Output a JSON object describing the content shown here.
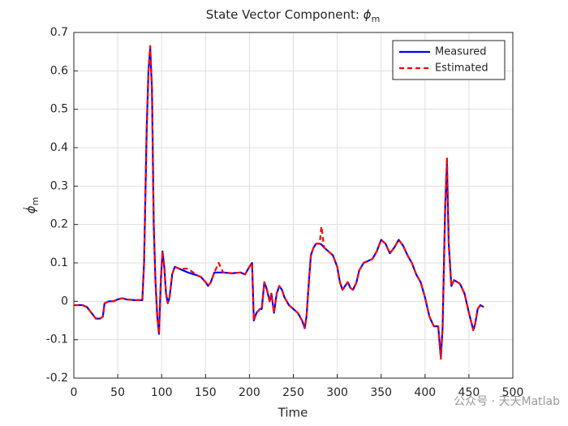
{
  "chart_data": {
    "type": "line",
    "title": {
      "text": "State Vector Component: ",
      "symbol": "ϕ",
      "subscript": "m"
    },
    "x_label": "Time",
    "y_label": {
      "symbol": "ϕ̇",
      "subscript": "m"
    },
    "annotation": "公众号 · 天天Matlab",
    "xlim": [
      0,
      500
    ],
    "xticks": [
      0,
      50,
      100,
      150,
      200,
      250,
      300,
      350,
      400,
      450,
      500
    ],
    "ylim": [
      -0.2,
      0.7
    ],
    "yticks": [
      -0.2,
      -0.1,
      0,
      0.1,
      0.2,
      0.3,
      0.4,
      0.5,
      0.6,
      0.7
    ],
    "grid": true,
    "legend": "upper right",
    "x": [
      0,
      10,
      15,
      20,
      25,
      30,
      33,
      35,
      40,
      45,
      50,
      55,
      60,
      70,
      78,
      80,
      83,
      85,
      87,
      89,
      91,
      93,
      95,
      97,
      99,
      101,
      103,
      105,
      107,
      109,
      112,
      115,
      120,
      130,
      140,
      145,
      150,
      153,
      156,
      160,
      165,
      170,
      180,
      190,
      195,
      200,
      203,
      205,
      208,
      212,
      214,
      217,
      220,
      223,
      225,
      228,
      231,
      234,
      237,
      240,
      245,
      250,
      255,
      260,
      263,
      265,
      268,
      270,
      273,
      276,
      280,
      282,
      285,
      290,
      295,
      300,
      303,
      306,
      309,
      312,
      315,
      318,
      322,
      325,
      330,
      340,
      345,
      350,
      355,
      360,
      365,
      370,
      375,
      380,
      385,
      390,
      395,
      400,
      405,
      410,
      415,
      418,
      420,
      423,
      425,
      427,
      430,
      433,
      437,
      440,
      445,
      450,
      455,
      457,
      460,
      463,
      467
    ],
    "series": [
      {
        "name": "Measured",
        "color": "#0000ff",
        "dash": "solid",
        "values": [
          -0.01,
          -0.01,
          -0.015,
          -0.03,
          -0.045,
          -0.045,
          -0.04,
          -0.005,
          0,
          0,
          0.005,
          0.008,
          0.005,
          0.003,
          0.003,
          0.1,
          0.45,
          0.6,
          0.66,
          0.55,
          0.2,
          0.05,
          -0.04,
          -0.085,
          0.05,
          0.13,
          0.09,
          0.02,
          -0.005,
          0.01,
          0.07,
          0.09,
          0.085,
          0.075,
          0.068,
          0.063,
          0.05,
          0.04,
          0.05,
          0.075,
          0.075,
          0.075,
          0.073,
          0.075,
          0.07,
          0.09,
          0.1,
          -0.05,
          -0.03,
          -0.02,
          -0.02,
          0.05,
          0.03,
          0,
          0.02,
          -0.03,
          0.02,
          0.04,
          0.03,
          0.01,
          -0.01,
          -0.02,
          -0.03,
          -0.05,
          -0.07,
          -0.04,
          0.06,
          0.12,
          0.14,
          0.15,
          0.15,
          0.148,
          0.14,
          0.13,
          0.12,
          0.09,
          0.05,
          0.03,
          0.04,
          0.05,
          0.035,
          0.03,
          0.05,
          0.08,
          0.1,
          0.11,
          0.13,
          0.16,
          0.15,
          0.125,
          0.14,
          0.16,
          0.145,
          0.12,
          0.1,
          0.07,
          0.05,
          0.01,
          -0.04,
          -0.065,
          -0.065,
          -0.145,
          -0.07,
          0.25,
          0.36,
          0.15,
          0.04,
          0.055,
          0.05,
          0.045,
          0.02,
          -0.03,
          -0.075,
          -0.06,
          -0.02,
          -0.01,
          -0.015
        ]
      },
      {
        "name": "Estimated",
        "color": "#ff0000",
        "dash": "dashed",
        "values": [
          -0.01,
          -0.01,
          -0.015,
          -0.03,
          -0.045,
          -0.045,
          -0.04,
          -0.005,
          0,
          0,
          0.005,
          0.008,
          0.005,
          0.003,
          0.003,
          0.1,
          0.45,
          0.6,
          0.665,
          0.55,
          0.2,
          0.05,
          -0.04,
          -0.085,
          0.05,
          0.13,
          0.09,
          0.02,
          -0.005,
          0.01,
          0.07,
          0.09,
          0.085,
          0.085,
          0.068,
          0.063,
          0.05,
          0.04,
          0.05,
          0.075,
          0.1,
          0.075,
          0.073,
          0.075,
          0.07,
          0.09,
          0.1,
          -0.05,
          -0.03,
          -0.02,
          -0.02,
          0.05,
          0.03,
          0,
          0.02,
          -0.03,
          0.02,
          0.04,
          0.03,
          0.01,
          -0.01,
          -0.02,
          -0.03,
          -0.05,
          -0.07,
          -0.04,
          0.06,
          0.12,
          0.14,
          0.15,
          0.15,
          0.195,
          0.14,
          0.13,
          0.12,
          0.09,
          0.05,
          0.03,
          0.04,
          0.05,
          0.035,
          0.03,
          0.05,
          0.08,
          0.1,
          0.11,
          0.13,
          0.16,
          0.15,
          0.125,
          0.14,
          0.16,
          0.145,
          0.12,
          0.1,
          0.07,
          0.05,
          0.01,
          -0.04,
          -0.065,
          -0.065,
          -0.15,
          -0.07,
          0.25,
          0.375,
          0.15,
          0.04,
          0.055,
          0.05,
          0.045,
          0.02,
          -0.03,
          -0.075,
          -0.06,
          -0.02,
          -0.01,
          -0.015
        ]
      }
    ]
  }
}
